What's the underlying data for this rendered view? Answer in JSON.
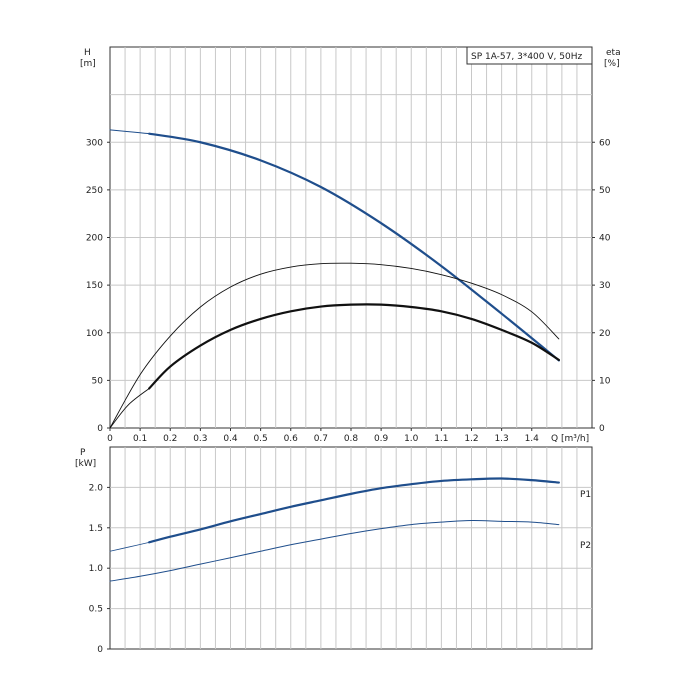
{
  "chart_data": [
    {
      "type": "line",
      "title": "SP 1A-57, 3*400 V, 50Hz",
      "xlabel": "Q [m³/h]",
      "x_axis_unit_label": "Q [m³/h]",
      "ylabel_left": "H",
      "ylabel_left_unit": "[m]",
      "ylabel_right": "eta",
      "ylabel_right_unit": "[%]",
      "xlim": [
        0,
        1.6
      ],
      "ylim_left": [
        0,
        400
      ],
      "ylim_right": [
        0,
        80
      ],
      "x_ticks": [
        {
          "value": 0,
          "label": "0"
        },
        {
          "value": 0.1,
          "label": "0.1"
        },
        {
          "value": 0.2,
          "label": "0.2"
        },
        {
          "value": 0.3,
          "label": "0.3"
        },
        {
          "value": 0.4,
          "label": "0.4"
        },
        {
          "value": 0.5,
          "label": "0.5"
        },
        {
          "value": 0.6,
          "label": "0.6"
        },
        {
          "value": 0.7,
          "label": "0.7"
        },
        {
          "value": 0.8,
          "label": "0.8"
        },
        {
          "value": 0.9,
          "label": "0.9"
        },
        {
          "value": 1.0,
          "label": "1.0"
        },
        {
          "value": 1.1,
          "label": "1.1"
        },
        {
          "value": 1.2,
          "label": "1.2"
        },
        {
          "value": 1.3,
          "label": "1.3"
        },
        {
          "value": 1.4,
          "label": "1.4"
        }
      ],
      "y_left_ticks": [
        {
          "value": 0,
          "label": "0"
        },
        {
          "value": 50,
          "label": "50"
        },
        {
          "value": 100,
          "label": "100"
        },
        {
          "value": 150,
          "label": "150"
        },
        {
          "value": 200,
          "label": "200"
        },
        {
          "value": 250,
          "label": "250"
        },
        {
          "value": 300,
          "label": "300"
        }
      ],
      "y_right_ticks": [
        {
          "value": 0,
          "label": "0"
        },
        {
          "value": 10,
          "label": "10"
        },
        {
          "value": 20,
          "label": "20"
        },
        {
          "value": 30,
          "label": "30"
        },
        {
          "value": 40,
          "label": "40"
        },
        {
          "value": 50,
          "label": "50"
        },
        {
          "value": 60,
          "label": "60"
        }
      ],
      "x_minor_step": 0.05,
      "y_minor_step": 50,
      "grid": true,
      "series": [
        {
          "name": "",
          "axis": "left",
          "color": "#1f4e8c",
          "width": 1,
          "dashed": false,
          "x": [
            0,
            0.1,
            0.13
          ],
          "y": [
            313,
            310,
            309
          ]
        },
        {
          "name": "",
          "axis": "left",
          "color": "#1f4e8c",
          "width": 2.2,
          "dashed": false,
          "x": [
            0.13,
            0.3,
            0.5,
            0.7,
            0.9,
            1.1,
            1.3,
            1.49
          ],
          "y": [
            309,
            300,
            281,
            253,
            215,
            170,
            120,
            71
          ]
        },
        {
          "name": "",
          "axis": "right",
          "color": "#111111",
          "width": 0.9,
          "dashed": false,
          "x": [
            0,
            0.1,
            0.2,
            0.3,
            0.4,
            0.5,
            0.6,
            0.7,
            0.8,
            0.9,
            1.0,
            1.1,
            1.2,
            1.3,
            1.4,
            1.49
          ],
          "y": [
            0,
            11.2,
            19.3,
            25.4,
            29.6,
            32.3,
            33.8,
            34.5,
            34.6,
            34.3,
            33.5,
            32.2,
            30.4,
            28.0,
            24.4,
            18.7
          ]
        },
        {
          "name": "",
          "axis": "right",
          "color": "#111111",
          "width": 0.9,
          "dashed": false,
          "x": [
            0,
            0.06,
            0.13
          ],
          "y": [
            0,
            4.8,
            8.3
          ]
        },
        {
          "name": "",
          "axis": "right",
          "color": "#111111",
          "width": 2.2,
          "dashed": false,
          "x": [
            0.13,
            0.2,
            0.3,
            0.4,
            0.5,
            0.6,
            0.7,
            0.8,
            0.9,
            1.0,
            1.1,
            1.2,
            1.3,
            1.4,
            1.49
          ],
          "y": [
            8.3,
            12.9,
            17.3,
            20.6,
            22.9,
            24.5,
            25.5,
            25.9,
            25.9,
            25.4,
            24.5,
            22.9,
            20.6,
            17.9,
            14.3
          ]
        }
      ]
    },
    {
      "type": "line",
      "title": "",
      "xlabel": "",
      "ylabel_left": "P",
      "ylabel_left_unit": "[kW]",
      "xlim": [
        0,
        1.6
      ],
      "ylim_left": [
        0,
        2.5
      ],
      "x_ticks": [],
      "y_left_ticks": [
        {
          "value": 0,
          "label": "0"
        },
        {
          "value": 0.5,
          "label": "0.5"
        },
        {
          "value": 1.0,
          "label": "1.0"
        },
        {
          "value": 1.5,
          "label": "1.5"
        },
        {
          "value": 2.0,
          "label": "2.0"
        }
      ],
      "x_minor_step": 0.05,
      "y_minor_step": 0.5,
      "grid": true,
      "series": [
        {
          "name": "P1",
          "axis": "left",
          "color": "#1f4e8c",
          "width": 2.2,
          "dashed": false,
          "x": [
            0.13,
            0.2,
            0.3,
            0.4,
            0.5,
            0.6,
            0.7,
            0.8,
            0.9,
            1.0,
            1.1,
            1.2,
            1.3,
            1.4,
            1.49
          ],
          "y": [
            1.32,
            1.39,
            1.48,
            1.58,
            1.67,
            1.76,
            1.84,
            1.92,
            1.99,
            2.04,
            2.08,
            2.1,
            2.11,
            2.09,
            2.06
          ]
        },
        {
          "name": "",
          "axis": "left",
          "color": "#1f4e8c",
          "width": 0.8,
          "dashed": false,
          "x": [
            0,
            0.06,
            0.13
          ],
          "y": [
            1.21,
            1.26,
            1.32
          ]
        },
        {
          "name": "P2",
          "axis": "left",
          "color": "#1f4e8c",
          "width": 1,
          "dashed": false,
          "x": [
            0,
            0.1,
            0.2,
            0.3,
            0.4,
            0.5,
            0.6,
            0.7,
            0.8,
            0.9,
            1.0,
            1.1,
            1.2,
            1.3,
            1.4,
            1.49
          ],
          "y": [
            0.84,
            0.9,
            0.97,
            1.05,
            1.13,
            1.21,
            1.29,
            1.36,
            1.43,
            1.49,
            1.54,
            1.57,
            1.59,
            1.58,
            1.57,
            1.54
          ]
        }
      ]
    }
  ]
}
